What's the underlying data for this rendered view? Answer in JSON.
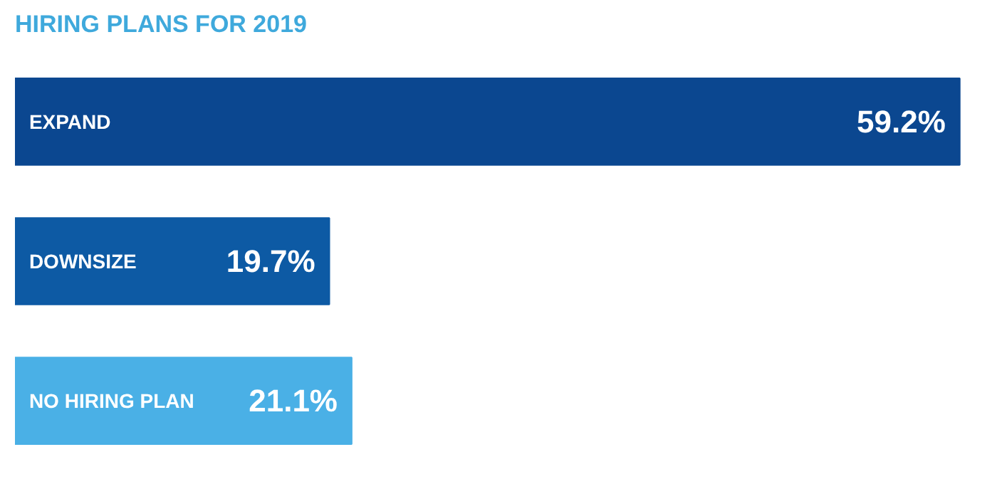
{
  "chart_data": {
    "type": "bar",
    "orientation": "horizontal",
    "title": "HIRING PLANS FOR 2019",
    "categories": [
      "EXPAND",
      "DOWNSIZE",
      "NO HIRING PLAN"
    ],
    "values": [
      59.2,
      19.7,
      21.1
    ],
    "colors": [
      "#0b4790",
      "#0d5aa4",
      "#4ab0e6"
    ],
    "value_labels": [
      "59.2%",
      "19.7%",
      "21.1%"
    ],
    "grid": false
  }
}
